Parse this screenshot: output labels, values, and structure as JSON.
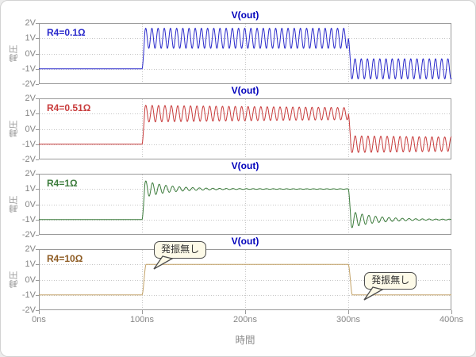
{
  "figure": {
    "bg": "#ffffff",
    "border_color": "#d2d2d2",
    "grid_color": "#c6c6c6",
    "axis_color": "#9a9a9a",
    "tick_label_color": "#858585",
    "title_color": "#0000bb"
  },
  "xaxis": {
    "label": "時間",
    "ticks": [
      "0ns",
      "100ns",
      "200ns",
      "300ns",
      "400ns"
    ],
    "values": [
      0,
      100,
      200,
      300,
      400
    ],
    "range": [
      0,
      400
    ],
    "unit": "ns"
  },
  "chart_data": [
    {
      "type": "line",
      "title": "V(out)",
      "series_label": "R4=0.1Ω",
      "color": "#2a2acb",
      "label_color": "#2a2acb",
      "ylabel": "電圧",
      "ylim": [
        -2,
        2
      ],
      "yticks": [
        "2V",
        "1V",
        "0V",
        "-1V",
        "-2V"
      ],
      "ytick_values": [
        2,
        1,
        0,
        -1,
        -2
      ],
      "wave": {
        "low": -1,
        "high": 1,
        "t_rise": 100,
        "t_fall": 300,
        "edge_ns": 3,
        "osc_amp": 0.66,
        "osc_tau": 1000000,
        "osc_period": 6.0,
        "osc_floor": 0
      }
    },
    {
      "type": "line",
      "title": "V(out)",
      "series_label": "R4=0.51Ω",
      "color": "#c83b3b",
      "label_color": "#c83b3b",
      "ylabel": "電圧",
      "ylim": [
        -2,
        2
      ],
      "yticks": [
        "2V",
        "1V",
        "0V",
        "-1V",
        "-2V"
      ],
      "ytick_values": [
        2,
        1,
        0,
        -1,
        -2
      ],
      "wave": {
        "low": -1,
        "high": 1,
        "t_rise": 100,
        "t_fall": 300,
        "edge_ns": 3,
        "osc_amp": 0.55,
        "osc_tau": 600,
        "osc_period": 6.2,
        "osc_floor": 0
      }
    },
    {
      "type": "line",
      "title": "V(out)",
      "series_label": "R4=1Ω",
      "color": "#3c7c3c",
      "label_color": "#3c7c3c",
      "ylabel": "電圧",
      "ylim": [
        -2,
        2
      ],
      "yticks": [
        "2V",
        "1V",
        "0V",
        "-1V",
        "-2V"
      ],
      "ytick_values": [
        2,
        1,
        0,
        -1,
        -2
      ],
      "wave": {
        "low": -1,
        "high": 1,
        "t_rise": 100,
        "t_fall": 300,
        "edge_ns": 3,
        "osc_amp": 0.55,
        "osc_tau": 24,
        "osc_period": 6.5,
        "osc_floor": 0.015
      }
    },
    {
      "type": "line",
      "title": "V(out)",
      "series_label": "R4=10Ω",
      "color": "#c2a166",
      "label_color": "#8d5a21",
      "ylabel": "電圧",
      "ylim": [
        -2,
        2
      ],
      "yticks": [
        "2V",
        "1V",
        "0V",
        "-1V",
        "-2V"
      ],
      "ytick_values": [
        2,
        1,
        0,
        -1,
        -2
      ],
      "wave": {
        "low": -1,
        "high": 1,
        "t_rise": 100,
        "t_fall": 300,
        "edge_ns": 4,
        "osc_amp": 0,
        "osc_tau": 1,
        "osc_period": 6,
        "osc_floor": 0
      },
      "annotations": [
        {
          "text": "発振無し",
          "t": 107,
          "v": 1
        },
        {
          "text": "発振無し",
          "t": 311,
          "v": -1
        }
      ]
    }
  ]
}
